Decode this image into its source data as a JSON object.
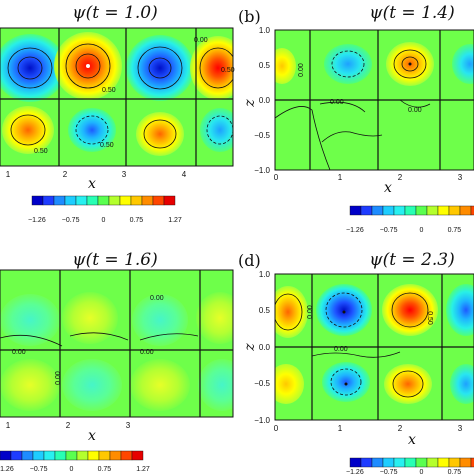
{
  "colorbar": {
    "colors": [
      "#0000c8",
      "#1e3cff",
      "#1e8cff",
      "#1ecdff",
      "#28f0f0",
      "#28ffb4",
      "#5aff50",
      "#b4ff2d",
      "#ffff00",
      "#ffc800",
      "#ff8c00",
      "#ff4600",
      "#e60000"
    ],
    "tick_labels": [
      "−1.26",
      "−0.75",
      "0",
      "0.75",
      "1.27"
    ],
    "tick_labels_clipped": [
      "−1.26",
      "−0.75",
      "0",
      "0.75",
      "1"
    ]
  },
  "panels": [
    {
      "label": "",
      "title": "ψ(t = 1.0)",
      "xlabel": "x",
      "ylabel": "",
      "x_ticks": [
        "1",
        "2",
        "3",
        "4"
      ],
      "y_ticks": [],
      "contour_labels": [
        "0.50",
        "0.50",
        "0.00",
        "0.50",
        "0.50"
      ]
    },
    {
      "label": "(b)",
      "title": "ψ(t = 1.4)",
      "xlabel": "x",
      "ylabel": "z",
      "x_ticks": [
        "0",
        "1",
        "2",
        "3"
      ],
      "y_ticks": [
        "1.0",
        "0.5",
        "0.0",
        "−0.5",
        "−1.0"
      ],
      "contour_labels": [
        "0.00",
        "0.00",
        "0.00"
      ]
    },
    {
      "label": "",
      "title": "ψ(t = 1.6)",
      "xlabel": "x",
      "ylabel": "",
      "x_ticks": [
        "1",
        "2",
        "3"
      ],
      "y_ticks": [],
      "contour_labels": [
        "0.00",
        "0.00",
        "0.00",
        "0.00"
      ]
    },
    {
      "label": "(d)",
      "title": "ψ(t = 2.3)",
      "xlabel": "x",
      "ylabel": "z",
      "x_ticks": [
        "0",
        "1",
        "2",
        "3"
      ],
      "y_ticks": [
        "1.0",
        "0.5",
        "0.0",
        "−0.5",
        "−1.0"
      ],
      "contour_labels": [
        "0.00",
        "0.50",
        "0.00"
      ]
    }
  ]
}
